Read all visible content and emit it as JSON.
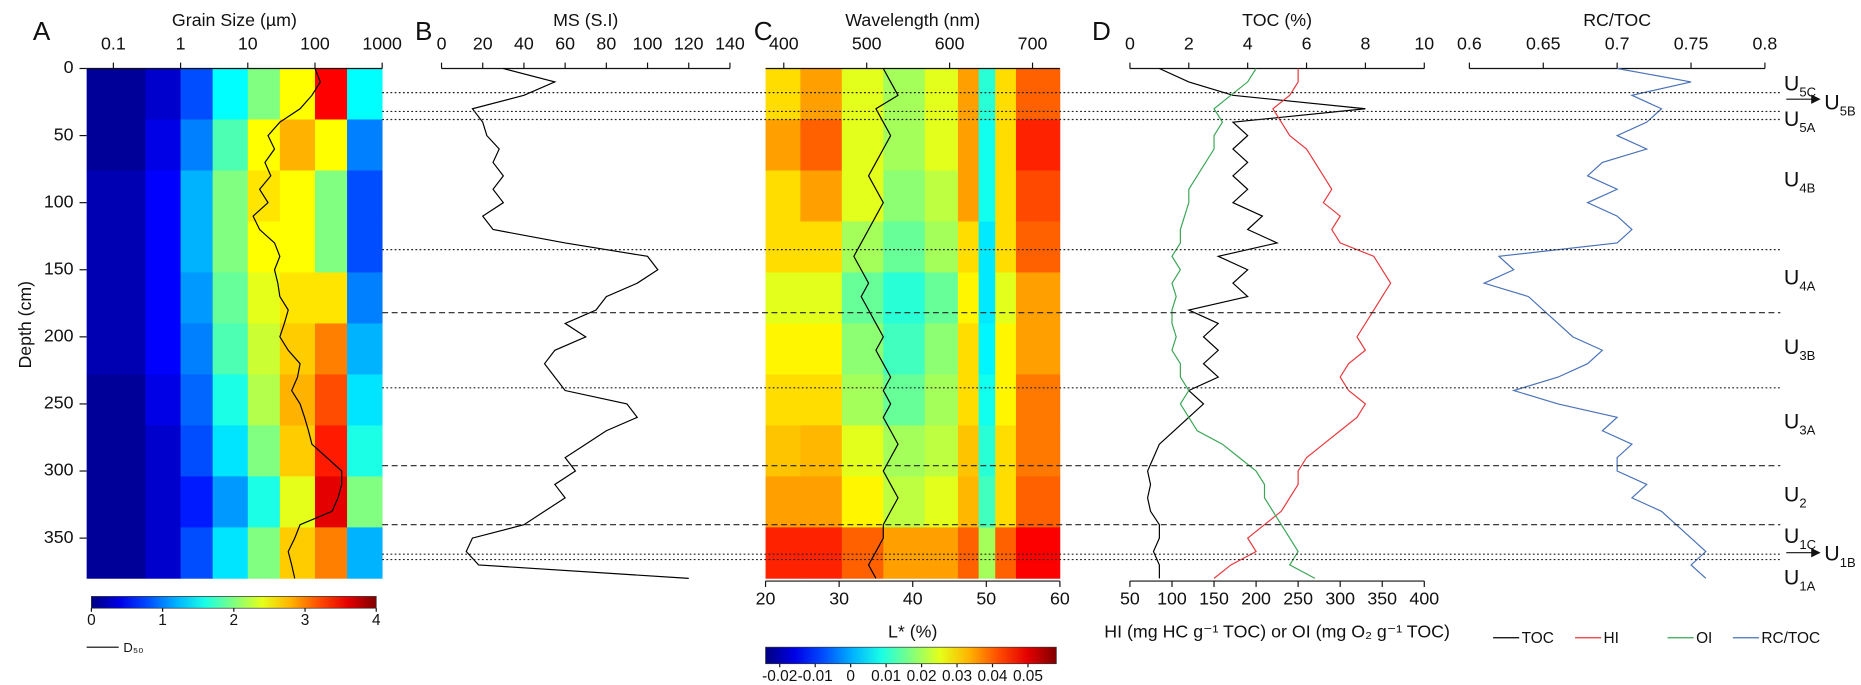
{
  "depth_axis": {
    "label": "Depth (cm)",
    "lim": [
      0,
      382
    ],
    "ticks": [
      0,
      50,
      100,
      150,
      200,
      250,
      300,
      350
    ]
  },
  "boundaries": [
    {
      "depth": 18,
      "style": "dotted"
    },
    {
      "depth": 32,
      "style": "dotted"
    },
    {
      "depth": 38,
      "style": "dotted"
    },
    {
      "depth": 135,
      "style": "dotted"
    },
    {
      "depth": 182,
      "style": "dashed"
    },
    {
      "depth": 238,
      "style": "dotted"
    },
    {
      "depth": 296,
      "style": "dashed"
    },
    {
      "depth": 340,
      "style": "dashed"
    },
    {
      "depth": 362,
      "style": "dotted"
    },
    {
      "depth": 366,
      "style": "dotted"
    }
  ],
  "units": [
    {
      "main": "U",
      "sub": "5C"
    },
    {
      "main": "U",
      "sub": "5B"
    },
    {
      "main": "U",
      "sub": "5A"
    },
    {
      "main": "U",
      "sub": "4B"
    },
    {
      "main": "U",
      "sub": "4A"
    },
    {
      "main": "U",
      "sub": "3B"
    },
    {
      "main": "U",
      "sub": "3A"
    },
    {
      "main": "U",
      "sub": "2"
    },
    {
      "main": "U",
      "sub": "1C"
    },
    {
      "main": "U",
      "sub": "1B"
    },
    {
      "main": "U",
      "sub": "1A"
    }
  ],
  "chart_data": [
    {
      "type": "heatmap",
      "panel": "A",
      "x_label": "Grain Size (µm)",
      "xscale": "log",
      "xlim": [
        0.04,
        1000
      ],
      "xticks": [
        0.1,
        1,
        10,
        100,
        1000
      ],
      "x_edges": [
        0.04,
        0.3,
        1,
        3,
        10,
        30,
        100,
        300,
        1000
      ],
      "depth_edges": [
        0,
        38,
        76,
        114,
        152,
        190,
        228,
        266,
        304,
        342,
        380
      ],
      "z": [
        [
          0.1,
          0.3,
          0.8,
          1.5,
          2.0,
          2.5,
          3.5,
          1.5
        ],
        [
          0.1,
          0.4,
          1.0,
          1.8,
          2.5,
          2.8,
          2.5,
          1.0
        ],
        [
          0.2,
          0.5,
          1.2,
          2.0,
          2.6,
          2.5,
          2.0,
          0.8
        ],
        [
          0.2,
          0.5,
          1.2,
          2.0,
          2.5,
          2.5,
          2.0,
          0.8
        ],
        [
          0.2,
          0.5,
          1.1,
          1.9,
          2.4,
          2.6,
          2.6,
          1.0
        ],
        [
          0.2,
          0.5,
          1.0,
          1.8,
          2.3,
          2.7,
          3.0,
          1.2
        ],
        [
          0.1,
          0.4,
          0.9,
          1.6,
          2.2,
          2.8,
          3.2,
          1.4
        ],
        [
          0.1,
          0.3,
          0.8,
          1.4,
          2.0,
          2.7,
          3.4,
          1.6
        ],
        [
          0.1,
          0.3,
          0.6,
          1.1,
          1.6,
          2.4,
          3.6,
          2.0
        ],
        [
          0.1,
          0.3,
          0.8,
          1.4,
          2.0,
          2.7,
          3.0,
          1.2
        ]
      ],
      "colorbar": {
        "lim": [
          0,
          4
        ],
        "ticks": [
          0,
          1,
          2,
          3,
          4
        ]
      },
      "series": [
        {
          "name": "D₅₀",
          "color": "#000000",
          "depth": [
            0,
            10,
            20,
            30,
            40,
            50,
            60,
            70,
            80,
            90,
            100,
            110,
            120,
            130,
            140,
            150,
            160,
            170,
            180,
            190,
            200,
            210,
            220,
            230,
            240,
            250,
            260,
            270,
            280,
            290,
            300,
            310,
            320,
            330,
            340,
            350,
            360,
            370,
            380
          ],
          "values": [
            100,
            120,
            90,
            60,
            30,
            20,
            25,
            18,
            22,
            15,
            20,
            12,
            15,
            25,
            30,
            25,
            28,
            30,
            40,
            35,
            30,
            40,
            60,
            55,
            45,
            60,
            70,
            80,
            90,
            150,
            250,
            250,
            220,
            180,
            60,
            50,
            40,
            45,
            50
          ]
        }
      ]
    },
    {
      "type": "line",
      "panel": "B",
      "x_label": "MS (S.I)",
      "xlim": [
        0,
        140
      ],
      "xticks": [
        0,
        20,
        40,
        60,
        80,
        100,
        120,
        140
      ],
      "series": [
        {
          "name": "MS",
          "color": "#000000",
          "depth": [
            0,
            10,
            20,
            30,
            40,
            50,
            60,
            70,
            80,
            90,
            100,
            110,
            120,
            130,
            140,
            150,
            160,
            170,
            180,
            190,
            200,
            210,
            220,
            230,
            240,
            250,
            260,
            270,
            280,
            290,
            300,
            310,
            320,
            330,
            340,
            350,
            360,
            370,
            380
          ],
          "values": [
            30,
            55,
            40,
            15,
            20,
            22,
            28,
            25,
            30,
            25,
            30,
            20,
            25,
            60,
            100,
            105,
            95,
            80,
            75,
            60,
            70,
            55,
            50,
            55,
            60,
            90,
            95,
            80,
            70,
            60,
            65,
            55,
            60,
            50,
            40,
            15,
            12,
            18,
            120
          ]
        }
      ]
    },
    {
      "type": "heatmap",
      "panel": "C",
      "x_label": "Wavelength (nm)",
      "xlim": [
        378,
        733
      ],
      "xticks": [
        400,
        500,
        600,
        700
      ],
      "x2_label": "L* (%)",
      "x2lim": [
        20,
        60
      ],
      "x2ticks": [
        20,
        30,
        40,
        50,
        60
      ],
      "x_edges": [
        378,
        420,
        470,
        520,
        570,
        610,
        635,
        655,
        680,
        733
      ],
      "depth_edges": [
        0,
        38,
        76,
        114,
        152,
        190,
        228,
        266,
        304,
        342,
        380
      ],
      "z": [
        [
          0.03,
          0.035,
          0.025,
          0.02,
          0.025,
          0.035,
          0.01,
          0.03,
          0.04
        ],
        [
          0.035,
          0.04,
          0.025,
          0.02,
          0.025,
          0.035,
          0.008,
          0.03,
          0.045
        ],
        [
          0.03,
          0.035,
          0.025,
          0.018,
          0.022,
          0.035,
          0.008,
          0.03,
          0.042
        ],
        [
          0.03,
          0.03,
          0.02,
          0.015,
          0.02,
          0.03,
          0.005,
          0.03,
          0.04
        ],
        [
          0.025,
          0.025,
          0.015,
          0.01,
          0.015,
          0.028,
          0.005,
          0.025,
          0.035
        ],
        [
          0.028,
          0.028,
          0.018,
          0.012,
          0.018,
          0.03,
          0.006,
          0.028,
          0.035
        ],
        [
          0.03,
          0.03,
          0.02,
          0.015,
          0.02,
          0.03,
          0.008,
          0.028,
          0.038
        ],
        [
          0.032,
          0.033,
          0.025,
          0.02,
          0.022,
          0.032,
          0.01,
          0.03,
          0.038
        ],
        [
          0.035,
          0.035,
          0.028,
          0.022,
          0.025,
          0.033,
          0.012,
          0.03,
          0.04
        ],
        [
          0.045,
          0.045,
          0.04,
          0.035,
          0.035,
          0.04,
          0.02,
          0.04,
          0.048
        ]
      ],
      "colorbar": {
        "lim": [
          -0.024,
          0.058
        ],
        "ticks": [
          -0.02,
          -0.01,
          0,
          0.01,
          0.02,
          0.03,
          0.04,
          0.05
        ]
      },
      "series": [
        {
          "name": "L*",
          "color": "#000000",
          "axis": "x2",
          "depth": [
            0,
            10,
            20,
            30,
            40,
            50,
            60,
            70,
            80,
            90,
            100,
            110,
            120,
            130,
            140,
            150,
            160,
            170,
            180,
            190,
            200,
            210,
            220,
            230,
            240,
            250,
            260,
            270,
            280,
            290,
            300,
            310,
            320,
            330,
            340,
            350,
            360,
            370,
            380
          ],
          "values": [
            36,
            37,
            38,
            35,
            36,
            37,
            36,
            35,
            34,
            35,
            36,
            35,
            34,
            33,
            32,
            33,
            34,
            33,
            34,
            35,
            36,
            35,
            36,
            37,
            36,
            37,
            36,
            37,
            38,
            37,
            36,
            37,
            38,
            37,
            36,
            36,
            35,
            34,
            35
          ]
        }
      ]
    },
    {
      "type": "line",
      "panel": "D",
      "x_label": "TOC (%)",
      "xlim": [
        0,
        10
      ],
      "xticks": [
        0,
        2,
        4,
        6,
        8,
        10
      ],
      "x2_label": "HI (mg HC g⁻¹ TOC) or OI (mg O₂ g⁻¹ TOC)",
      "x2lim": [
        50,
        400
      ],
      "x2ticks": [
        50,
        100,
        150,
        200,
        250,
        300,
        350,
        400
      ],
      "series": [
        {
          "name": "TOC",
          "color": "#000000",
          "depth": [
            0,
            10,
            20,
            30,
            40,
            50,
            60,
            70,
            80,
            90,
            100,
            110,
            120,
            130,
            140,
            150,
            160,
            170,
            180,
            190,
            200,
            210,
            220,
            230,
            240,
            250,
            260,
            270,
            280,
            290,
            300,
            310,
            320,
            330,
            340,
            350,
            360,
            370,
            380
          ],
          "values": [
            1,
            2,
            3.5,
            8,
            3.5,
            4,
            3.5,
            4,
            3.5,
            4,
            3.5,
            4.5,
            4,
            5,
            3,
            4,
            3.5,
            4,
            2,
            3,
            2.5,
            3,
            2.5,
            3,
            2,
            2.5,
            2,
            1.5,
            1,
            0.8,
            0.6,
            0.7,
            0.6,
            0.7,
            1,
            1,
            0.8,
            1,
            1
          ]
        },
        {
          "name": "HI",
          "color": "#e8383d",
          "axis": "x2",
          "depth": [
            0,
            10,
            20,
            30,
            40,
            50,
            60,
            70,
            80,
            90,
            100,
            110,
            120,
            130,
            140,
            150,
            160,
            170,
            180,
            190,
            200,
            210,
            220,
            230,
            240,
            250,
            260,
            270,
            280,
            290,
            300,
            310,
            320,
            330,
            340,
            350,
            360,
            370,
            380
          ],
          "values": [
            250,
            250,
            240,
            220,
            230,
            240,
            260,
            270,
            280,
            290,
            280,
            300,
            290,
            300,
            340,
            350,
            360,
            350,
            340,
            330,
            320,
            330,
            310,
            300,
            310,
            330,
            320,
            300,
            280,
            260,
            250,
            250,
            240,
            230,
            210,
            190,
            200,
            170,
            150
          ]
        },
        {
          "name": "OI",
          "color": "#3aa655",
          "axis": "x2",
          "depth": [
            0,
            10,
            20,
            30,
            40,
            50,
            60,
            70,
            80,
            90,
            100,
            110,
            120,
            130,
            140,
            150,
            160,
            170,
            180,
            190,
            200,
            210,
            220,
            230,
            240,
            250,
            260,
            270,
            280,
            290,
            300,
            310,
            320,
            330,
            340,
            350,
            360,
            370,
            380
          ],
          "values": [
            200,
            190,
            170,
            150,
            160,
            150,
            150,
            140,
            130,
            120,
            120,
            115,
            110,
            110,
            100,
            110,
            100,
            105,
            100,
            100,
            105,
            100,
            110,
            110,
            120,
            110,
            120,
            130,
            160,
            180,
            200,
            210,
            210,
            220,
            230,
            240,
            250,
            240,
            270
          ]
        }
      ]
    },
    {
      "type": "line",
      "x_label": "RC/TOC",
      "xlim": [
        0.6,
        0.8
      ],
      "xticks": [
        0.6,
        0.65,
        0.7,
        0.75,
        0.8
      ],
      "series": [
        {
          "name": "RC/TOC",
          "color": "#4a72b8",
          "depth": [
            0,
            10,
            20,
            30,
            40,
            50,
            60,
            70,
            80,
            90,
            100,
            110,
            120,
            130,
            140,
            150,
            160,
            170,
            180,
            190,
            200,
            210,
            220,
            230,
            240,
            250,
            260,
            270,
            280,
            290,
            300,
            310,
            320,
            330,
            340,
            350,
            360,
            370,
            380
          ],
          "values": [
            0.7,
            0.75,
            0.71,
            0.73,
            0.72,
            0.7,
            0.72,
            0.69,
            0.68,
            0.7,
            0.68,
            0.7,
            0.71,
            0.7,
            0.62,
            0.63,
            0.61,
            0.64,
            0.65,
            0.66,
            0.67,
            0.69,
            0.68,
            0.66,
            0.63,
            0.66,
            0.7,
            0.69,
            0.71,
            0.7,
            0.7,
            0.72,
            0.71,
            0.73,
            0.74,
            0.75,
            0.76,
            0.75,
            0.76
          ]
        }
      ]
    }
  ]
}
